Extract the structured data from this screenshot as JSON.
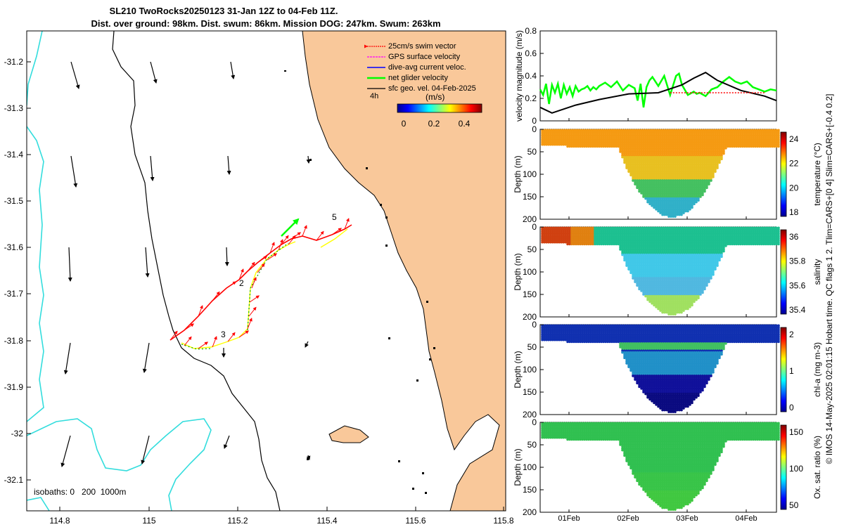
{
  "title": {
    "line1": "SL210 TwoRocks20250123 31-Jan 12Z to 04-Feb 11Z.",
    "line2": "Dist. over ground: 98km. Dist. swum: 86km. Mission DOG: 247km. Swum: 263km"
  },
  "map": {
    "legend": [
      {
        "label": "25cm/s swim vector",
        "color": "#ff0000"
      },
      {
        "label": "GPS surface velocity",
        "color": "#ff00ff"
      },
      {
        "label": "dive-avg current veloc.",
        "color": "#0000ff"
      },
      {
        "label": "net glider velocity",
        "color": "#00ff00"
      },
      {
        "label": "sfc geo. vel. 04-Feb-2025",
        "color": "#000000"
      }
    ],
    "legend_time": "4h",
    "colorbar_label": "(m/s)",
    "colorbar_ticks": [
      "0",
      "0.2",
      "0.4"
    ],
    "isobaths_label": "isobaths: 0   200  1000m",
    "annotations": [
      "5",
      "2",
      "3"
    ],
    "land_color": "#f9c89a",
    "xticks": [
      "114.8",
      "115",
      "115.2",
      "115.4",
      "115.6",
      "115.8"
    ],
    "yticks": [
      "-31.2",
      "-31.3",
      "-31.4",
      "-31.5",
      "-31.6",
      "-31.7",
      "-31.8",
      "-31.9",
      "-32",
      "-32.1"
    ]
  },
  "chart_data": [
    {
      "type": "line",
      "title": "",
      "ylabel": "velocity magnitude (m/s)",
      "ylim": [
        0,
        0.8
      ],
      "yticks": [
        "0",
        "0.2",
        "0.4",
        "0.6",
        "0.8"
      ],
      "xlim_days": [
        0,
        4
      ],
      "series": [
        {
          "name": "net glider velocity",
          "color": "#00ff00",
          "x": [
            0.0,
            0.05,
            0.1,
            0.15,
            0.2,
            0.25,
            0.3,
            0.35,
            0.4,
            0.45,
            0.5,
            0.55,
            0.6,
            0.65,
            0.7,
            0.75,
            0.8,
            0.85,
            0.9,
            0.95,
            1.0,
            1.1,
            1.2,
            1.3,
            1.4,
            1.5,
            1.6,
            1.65,
            1.7,
            1.75,
            1.8,
            1.85,
            1.9,
            2.0,
            2.1,
            2.2,
            2.3,
            2.35,
            2.4,
            2.5,
            2.6,
            2.65,
            2.7,
            2.8,
            2.9,
            3.0,
            3.1,
            3.2,
            3.3,
            3.4,
            3.5,
            3.6,
            3.7,
            3.8,
            3.9,
            4.0
          ],
          "values": [
            0.28,
            0.23,
            0.33,
            0.15,
            0.32,
            0.25,
            0.33,
            0.2,
            0.32,
            0.24,
            0.3,
            0.22,
            0.31,
            0.26,
            0.28,
            0.29,
            0.31,
            0.27,
            0.3,
            0.28,
            0.31,
            0.34,
            0.3,
            0.35,
            0.27,
            0.32,
            0.29,
            0.18,
            0.33,
            0.12,
            0.3,
            0.36,
            0.39,
            0.31,
            0.4,
            0.23,
            0.4,
            0.42,
            0.32,
            0.23,
            0.26,
            0.24,
            0.25,
            0.22,
            0.28,
            0.3,
            0.35,
            0.39,
            0.35,
            0.33,
            0.35,
            0.3,
            0.28,
            0.26,
            0.28,
            0.27
          ]
        },
        {
          "name": "sfc geo. vel.",
          "color": "#000000",
          "x": [
            0.0,
            0.2,
            0.6,
            1.0,
            1.5,
            2.0,
            2.4,
            2.6,
            2.8,
            3.0,
            3.4,
            3.8,
            4.0
          ],
          "values": [
            0.12,
            0.07,
            0.14,
            0.19,
            0.24,
            0.25,
            0.32,
            0.38,
            0.43,
            0.36,
            0.27,
            0.22,
            0.18
          ]
        },
        {
          "name": "dive-avg current",
          "color": "#ff0000",
          "style": "dotted",
          "x": [
            2.2,
            2.6,
            3.0,
            3.4,
            3.8
          ],
          "values": [
            0.25,
            0.25,
            0.25,
            0.25,
            0.25
          ]
        }
      ]
    },
    {
      "type": "heatmap",
      "ylabel": "Depth (m)",
      "yticks": [
        "0",
        "50",
        "100",
        "150",
        "200"
      ],
      "colorbar_label": "temperature (°C)",
      "colorbar_ticks": [
        "18",
        "20",
        "22",
        "24"
      ]
    },
    {
      "type": "heatmap",
      "ylabel": "Depth (m)",
      "yticks": [
        "0",
        "50",
        "100",
        "150",
        "200"
      ],
      "colorbar_label": "salinity",
      "colorbar_ticks": [
        "35.4",
        "35.6",
        "35.8",
        "36"
      ]
    },
    {
      "type": "heatmap",
      "ylabel": "Depth (m)",
      "yticks": [
        "0",
        "50",
        "100",
        "150",
        "200"
      ],
      "colorbar_label": "chl-a (mg m-3)",
      "colorbar_ticks": [
        "0",
        "1",
        "2"
      ]
    },
    {
      "type": "heatmap",
      "ylabel": "Depth (m)",
      "yticks": [
        "0",
        "50",
        "100",
        "150",
        "200"
      ],
      "colorbar_label": "Ox. sat. ratio (%)",
      "colorbar_ticks": [
        "50",
        "100",
        "150"
      ]
    }
  ],
  "right_panels": {
    "xticks": [
      "01Feb",
      "02Feb",
      "03Feb",
      "04Feb"
    ],
    "side_note": "© IMOS 14-May-2025 02:01:15 Hobart time. QC flags 1  2. Tlim=CARS+[0 4] Slim=CARS+[-0.4 0.2]"
  }
}
